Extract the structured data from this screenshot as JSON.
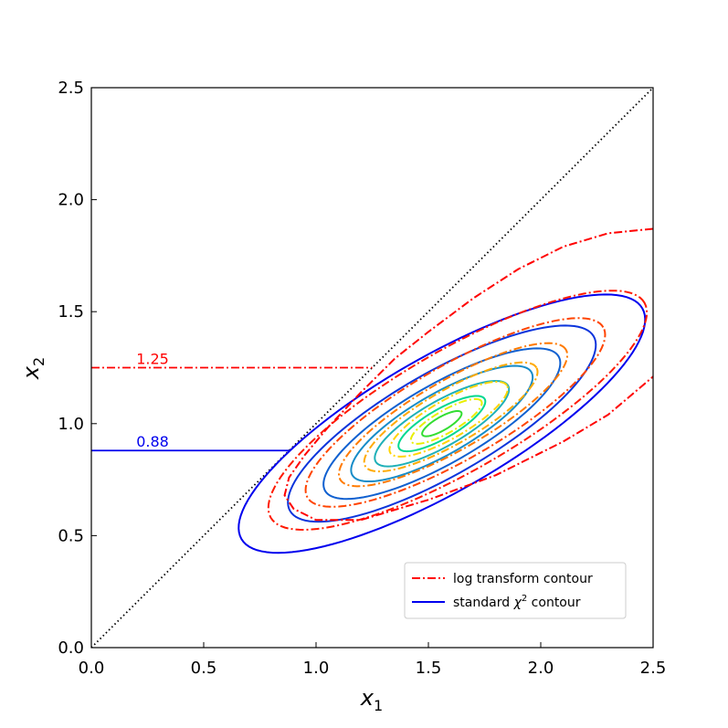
{
  "chart_data": {
    "type": "line",
    "xlabel": "x",
    "xlabel_sub": "1",
    "ylabel": "x",
    "ylabel_sub": "2",
    "xlim": [
      0,
      2.5
    ],
    "ylim": [
      0,
      2.5
    ],
    "xticks": [
      "0.0",
      "0.5",
      "1.0",
      "1.5",
      "2.0",
      "2.5"
    ],
    "yticks": [
      "0.0",
      "0.5",
      "1.0",
      "1.5",
      "2.0",
      "2.5"
    ],
    "grid": false,
    "legend_position": "bottom-right",
    "legend": [
      {
        "label": "log transform contour",
        "color": "#ff0000",
        "style": "dashdot"
      },
      {
        "label": "standard ",
        "label_chi": "χ",
        "label_sup": "2",
        "label_tail": " contour",
        "color": "#0000ee",
        "style": "solid"
      }
    ],
    "annotations": [
      {
        "text": "1.25",
        "x": 0.2,
        "y": 1.25,
        "color": "#ff0000"
      },
      {
        "text": "0.88",
        "x": 0.2,
        "y": 0.88,
        "color": "#0000ee"
      }
    ],
    "reference_lines": {
      "diagonal": {
        "from": [
          0,
          0
        ],
        "to": [
          2.5,
          2.5
        ],
        "style": "dotted",
        "color": "#000000"
      },
      "log_level": {
        "y": 1.25,
        "x_from": 0,
        "x_to": 1.25,
        "color": "#ff0000",
        "style": "dashdot"
      },
      "chi_level": {
        "y": 0.88,
        "x_from": 0,
        "x_to": 0.88,
        "color": "#0000ee",
        "style": "solid"
      }
    },
    "center": [
      1.5,
      1.0
    ],
    "solid_contours": [
      {
        "cx": 1.56,
        "cy": 1.0,
        "a": 0.1,
        "b": 0.03,
        "angle": 30,
        "color": "#33dd33"
      },
      {
        "cx": 1.56,
        "cy": 1.0,
        "a": 0.22,
        "b": 0.065,
        "angle": 30,
        "color": "#00d890"
      },
      {
        "cx": 1.56,
        "cy": 1.0,
        "a": 0.34,
        "b": 0.1,
        "angle": 30,
        "color": "#1fb0b8"
      },
      {
        "cx": 1.56,
        "cy": 1.0,
        "a": 0.46,
        "b": 0.135,
        "angle": 30,
        "color": "#168cc8"
      },
      {
        "cx": 1.56,
        "cy": 1.0,
        "a": 0.6,
        "b": 0.175,
        "angle": 30,
        "color": "#1060d0"
      },
      {
        "cx": 1.56,
        "cy": 1.0,
        "a": 0.78,
        "b": 0.23,
        "angle": 30,
        "color": "#0b34dc"
      },
      {
        "cx": 1.56,
        "cy": 1.0,
        "a": 1.03,
        "b": 0.3,
        "angle": 30,
        "color": "#0000ee"
      }
    ],
    "dashed_contours": [
      {
        "cx": 1.58,
        "cy": 1.01,
        "a": 0.18,
        "b": 0.05,
        "angle": 30,
        "color": "#e8ee00"
      },
      {
        "cx": 1.59,
        "cy": 1.02,
        "a": 0.3,
        "b": 0.085,
        "angle": 30,
        "color": "#ffd400"
      },
      {
        "cx": 1.6,
        "cy": 1.03,
        "a": 0.44,
        "b": 0.12,
        "angle": 30,
        "color": "#ffaa00"
      },
      {
        "cx": 1.61,
        "cy": 1.04,
        "a": 0.58,
        "b": 0.155,
        "angle": 30,
        "color": "#ff7a00"
      },
      {
        "cx": 1.62,
        "cy": 1.05,
        "a": 0.76,
        "b": 0.21,
        "angle": 30,
        "color": "#ff4400"
      },
      {
        "cx": 1.63,
        "cy": 1.06,
        "a": 0.96,
        "b": 0.27,
        "angle": 30,
        "color": "#ff1a00"
      }
    ],
    "outer_log_contour": {
      "color": "#ff0000",
      "points": [
        [
          2.5,
          1.87
        ],
        [
          2.3,
          1.85
        ],
        [
          2.1,
          1.79
        ],
        [
          1.9,
          1.69
        ],
        [
          1.7,
          1.56
        ],
        [
          1.5,
          1.41
        ],
        [
          1.35,
          1.29
        ],
        [
          1.2,
          1.14
        ],
        [
          1.05,
          0.98
        ],
        [
          0.95,
          0.86
        ],
        [
          0.88,
          0.76
        ],
        [
          0.86,
          0.68
        ],
        [
          0.9,
          0.62
        ],
        [
          1.0,
          0.57
        ],
        [
          1.2,
          0.57
        ],
        [
          1.5,
          0.66
        ],
        [
          1.8,
          0.77
        ],
        [
          2.1,
          0.92
        ],
        [
          2.3,
          1.04
        ],
        [
          2.5,
          1.21
        ]
      ]
    }
  }
}
